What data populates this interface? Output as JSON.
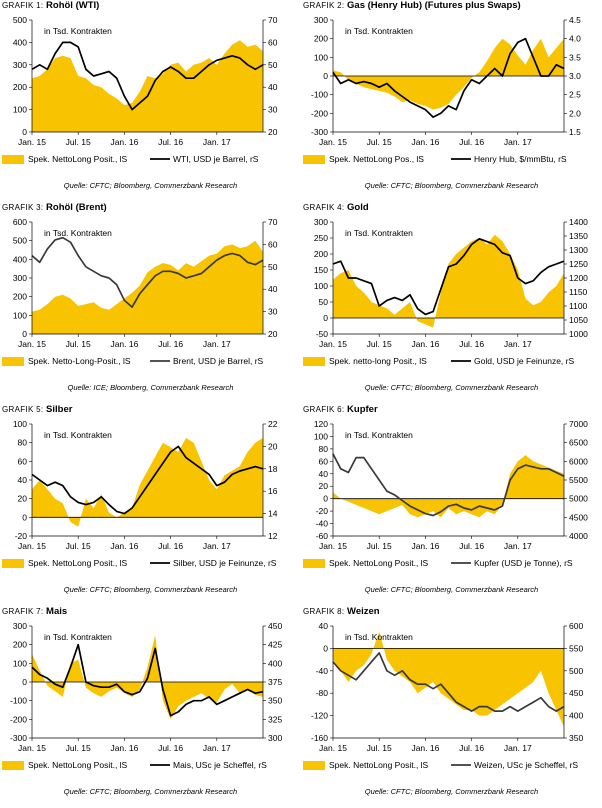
{
  "colors": {
    "area": "#F8C300",
    "line": "#000000",
    "line_grey": "#3a3a3a",
    "axis": "#000000",
    "zero": "#000000"
  },
  "common": {
    "xticks": [
      "Jan. 15",
      "Jul. 15",
      "Jan. 16",
      "Jul. 16",
      "Jan. 17"
    ],
    "months": 31,
    "unit_note": "in Tsd. Kontrakten"
  },
  "chart_data": [
    {
      "id": "g1",
      "gk": "GRAFIK 1:",
      "name": "Rohöl (WTI)",
      "source": "Quelle: CFTC; Bloomberg, Commerzbank Research",
      "type": "area+line",
      "legend_area": "Spek. NettoLong Posit., lS",
      "legend_line": "WTI, USD je Barrel, rS",
      "ylim_left": [
        0,
        500
      ],
      "yticks_left": [
        0,
        100,
        200,
        300,
        400,
        500
      ],
      "ylim_right": [
        20,
        70
      ],
      "yticks_right": [
        20,
        30,
        40,
        50,
        60,
        70
      ],
      "line_color": "line",
      "x": [
        0,
        1,
        2,
        3,
        4,
        5,
        6,
        7,
        8,
        9,
        10,
        11,
        12,
        13,
        14,
        15,
        16,
        17,
        18,
        19,
        20,
        21,
        22,
        23,
        24,
        25,
        26,
        27,
        28,
        29,
        30
      ],
      "area": [
        240,
        250,
        280,
        330,
        340,
        330,
        250,
        240,
        210,
        200,
        170,
        150,
        120,
        130,
        180,
        250,
        240,
        260,
        300,
        310,
        270,
        300,
        310,
        330,
        300,
        350,
        390,
        410,
        380,
        390,
        360
      ],
      "line": [
        48,
        50,
        48,
        55,
        60,
        60,
        58,
        48,
        45,
        46,
        47,
        44,
        36,
        30,
        33,
        36,
        43,
        47,
        49,
        47,
        44,
        44,
        47,
        50,
        52,
        53,
        54,
        53,
        50,
        48,
        50
      ]
    },
    {
      "id": "g2",
      "gk": "GRAFIK 2:",
      "name": "Gas (Henry Hub) (Futures plus Swaps)",
      "source": "Quelle: CFTC; Bloomberg, Commerzbank Research",
      "type": "area+line",
      "legend_area": "Spek. NettoLong Pos., lS",
      "legend_line": "Henry Hub, $/mmBtu, rS",
      "ylim_left": [
        -300,
        300
      ],
      "yticks_left": [
        -300,
        -200,
        -100,
        0,
        100,
        200,
        300
      ],
      "ylim_right": [
        1.5,
        4.5
      ],
      "yticks_right": [
        1.5,
        2.0,
        2.5,
        3.0,
        3.5,
        4.0,
        4.5
      ],
      "line_color": "line",
      "x": [
        0,
        1,
        2,
        3,
        4,
        5,
        6,
        7,
        8,
        9,
        10,
        11,
        12,
        13,
        14,
        15,
        16,
        17,
        18,
        19,
        20,
        21,
        22,
        23,
        24,
        25,
        26,
        27,
        28,
        29,
        30
      ],
      "area": [
        30,
        20,
        -20,
        -40,
        -60,
        -70,
        -80,
        -90,
        -110,
        -140,
        -130,
        -150,
        -160,
        -180,
        -170,
        -150,
        -100,
        -60,
        -10,
        20,
        80,
        150,
        200,
        170,
        110,
        60,
        140,
        200,
        100,
        150,
        200
      ],
      "line": [
        3.1,
        2.8,
        2.9,
        2.8,
        2.85,
        2.8,
        2.7,
        2.8,
        2.6,
        2.45,
        2.3,
        2.2,
        2.1,
        1.9,
        2.0,
        2.2,
        2.1,
        2.6,
        2.9,
        2.8,
        3.0,
        3.2,
        3.0,
        3.6,
        3.9,
        4.0,
        3.5,
        3.0,
        3.0,
        3.3,
        3.2
      ]
    },
    {
      "id": "g3",
      "gk": "GRAFIK 3:",
      "name": "Rohöl (Brent)",
      "source": "Quelle: ICE; Bloomberg, Commerzbank Research",
      "type": "area+line",
      "legend_area": "Spek. Netto-Long-Posit., lS",
      "legend_line": "Brent, USD je Barrel, rS",
      "ylim_left": [
        0,
        600
      ],
      "yticks_left": [
        0,
        100,
        200,
        300,
        400,
        500,
        600
      ],
      "ylim_right": [
        20,
        70
      ],
      "yticks_right": [
        20,
        30,
        40,
        50,
        60,
        70
      ],
      "line_color": "line_grey",
      "x": [
        0,
        1,
        2,
        3,
        4,
        5,
        6,
        7,
        8,
        9,
        10,
        11,
        12,
        13,
        14,
        15,
        16,
        17,
        18,
        19,
        20,
        21,
        22,
        23,
        24,
        25,
        26,
        27,
        28,
        29,
        30
      ],
      "area": [
        120,
        130,
        160,
        200,
        210,
        190,
        150,
        160,
        170,
        140,
        130,
        160,
        190,
        220,
        260,
        330,
        360,
        380,
        370,
        340,
        380,
        360,
        390,
        420,
        430,
        470,
        480,
        460,
        470,
        500,
        440
      ],
      "line": [
        55,
        52,
        58,
        62,
        63,
        61,
        55,
        50,
        48,
        46,
        45,
        42,
        35,
        32,
        38,
        42,
        46,
        48,
        48,
        47,
        45,
        46,
        47,
        50,
        53,
        55,
        56,
        55,
        52,
        51,
        53
      ]
    },
    {
      "id": "g4",
      "gk": "GRAFIK 4:",
      "name": "Gold",
      "source": "Quelle: CFTC; Bloomberg, Commerzbank Research",
      "type": "area+line",
      "legend_area": "Spek. netto-long Posit., lS",
      "legend_line": "Gold, USD je Feinunze, rS",
      "ylim_left": [
        -50,
        300
      ],
      "yticks_left": [
        -50,
        0,
        50,
        100,
        150,
        200,
        250,
        300
      ],
      "ylim_right": [
        1000,
        1400
      ],
      "yticks_right": [
        1000,
        1050,
        1100,
        1150,
        1200,
        1250,
        1300,
        1350,
        1400
      ],
      "line_color": "line",
      "x": [
        0,
        1,
        2,
        3,
        4,
        5,
        6,
        7,
        8,
        9,
        10,
        11,
        12,
        13,
        14,
        15,
        16,
        17,
        18,
        19,
        20,
        21,
        22,
        23,
        24,
        25,
        26,
        27,
        28,
        29,
        30
      ],
      "area": [
        120,
        140,
        150,
        100,
        80,
        50,
        40,
        30,
        10,
        30,
        50,
        -10,
        -20,
        -30,
        80,
        170,
        200,
        220,
        240,
        250,
        230,
        260,
        240,
        200,
        150,
        60,
        40,
        50,
        80,
        100,
        140
      ],
      "line": [
        1250,
        1260,
        1200,
        1200,
        1190,
        1180,
        1100,
        1120,
        1130,
        1120,
        1140,
        1090,
        1070,
        1080,
        1160,
        1240,
        1250,
        1280,
        1320,
        1340,
        1330,
        1320,
        1290,
        1280,
        1200,
        1180,
        1190,
        1220,
        1240,
        1250,
        1260
      ]
    },
    {
      "id": "g5",
      "gk": "GRAFIK 5:",
      "name": "Silber",
      "source": "Quelle: CFTC; Bloomberg, Commerzbank Research",
      "type": "area+line",
      "legend_area": "Spek. NettoLong Posit., lS",
      "legend_line": "Silber, USD je Feinunze, rS",
      "ylim_left": [
        -20,
        100
      ],
      "yticks_left": [
        -20,
        0,
        20,
        40,
        60,
        80,
        100
      ],
      "ylim_right": [
        12,
        22
      ],
      "yticks_right": [
        12,
        14,
        16,
        18,
        20,
        22
      ],
      "line_color": "line",
      "x": [
        0,
        1,
        2,
        3,
        4,
        5,
        6,
        7,
        8,
        9,
        10,
        11,
        12,
        13,
        14,
        15,
        16,
        17,
        18,
        19,
        20,
        21,
        22,
        23,
        24,
        25,
        26,
        27,
        28,
        29,
        30
      ],
      "area": [
        30,
        40,
        30,
        20,
        15,
        -5,
        -10,
        20,
        10,
        25,
        5,
        0,
        5,
        10,
        35,
        50,
        65,
        80,
        75,
        70,
        85,
        80,
        60,
        40,
        30,
        45,
        50,
        55,
        70,
        80,
        85
      ],
      "line": [
        17.5,
        17.0,
        16.5,
        16.8,
        16.5,
        15.5,
        15.0,
        14.8,
        15.0,
        15.5,
        14.8,
        14.2,
        14.0,
        14.5,
        15.5,
        16.5,
        17.5,
        18.5,
        19.5,
        20.0,
        19.0,
        18.5,
        18.0,
        17.5,
        16.5,
        16.8,
        17.5,
        17.8,
        18.0,
        18.2,
        18.0
      ]
    },
    {
      "id": "g6",
      "gk": "GRAFIK 6:",
      "name": "Kupfer",
      "source": "Quelle: CFTC; Bloomberg, Commerzbank Research",
      "type": "area+line",
      "legend_area": "Spek. NettoLong Posit., lS",
      "legend_line": "Kupfer (USD je Tonne), rS",
      "ylim_left": [
        -60,
        120
      ],
      "yticks_left": [
        -60,
        -40,
        -20,
        0,
        20,
        40,
        60,
        80,
        100,
        120
      ],
      "ylim_right": [
        4000,
        7000
      ],
      "yticks_right": [
        4000,
        4500,
        5000,
        5500,
        6000,
        6500,
        7000
      ],
      "line_color": "line_grey",
      "x": [
        0,
        1,
        2,
        3,
        4,
        5,
        6,
        7,
        8,
        9,
        10,
        11,
        12,
        13,
        14,
        15,
        16,
        17,
        18,
        19,
        20,
        21,
        22,
        23,
        24,
        25,
        26,
        27,
        28,
        29,
        30
      ],
      "area": [
        10,
        0,
        -5,
        -10,
        -15,
        -20,
        -25,
        -20,
        -15,
        -10,
        -25,
        -30,
        -25,
        -20,
        -30,
        -15,
        -25,
        -20,
        -25,
        -30,
        -20,
        -25,
        -10,
        40,
        60,
        70,
        60,
        55,
        50,
        45,
        40
      ],
      "line": [
        6200,
        5800,
        5700,
        6100,
        6100,
        5800,
        5500,
        5200,
        5100,
        4950,
        4800,
        4700,
        4600,
        4550,
        4650,
        4800,
        4850,
        4750,
        4700,
        4800,
        4750,
        4700,
        4800,
        5500,
        5800,
        5900,
        5850,
        5800,
        5800,
        5700,
        5600
      ]
    },
    {
      "id": "g7",
      "gk": "GRAFIK 7:",
      "name": "Mais",
      "source": "Quelle: CFTC; Bloomberg, Commerzbank Research",
      "type": "area+line",
      "legend_area": "Spek. NettoLong Posit., lS",
      "legend_line": "Mais, USc je Scheffel, rS",
      "ylim_left": [
        -300,
        300
      ],
      "yticks_left": [
        -300,
        -200,
        -100,
        0,
        100,
        200,
        300
      ],
      "ylim_right": [
        300,
        450
      ],
      "yticks_right": [
        300,
        325,
        350,
        375,
        400,
        425,
        450
      ],
      "line_color": "line",
      "x": [
        0,
        1,
        2,
        3,
        4,
        5,
        6,
        7,
        8,
        9,
        10,
        11,
        12,
        13,
        14,
        15,
        16,
        17,
        18,
        19,
        20,
        21,
        22,
        23,
        24,
        25,
        26,
        27,
        28,
        29,
        30
      ],
      "area": [
        150,
        60,
        -20,
        -50,
        -80,
        100,
        120,
        -30,
        -60,
        -80,
        -50,
        -30,
        -60,
        -80,
        -40,
        80,
        250,
        -100,
        -200,
        -130,
        -100,
        -80,
        -60,
        -90,
        -110,
        -40,
        -10,
        -60,
        -40,
        -70,
        -80
      ],
      "line": [
        395,
        385,
        380,
        372,
        368,
        395,
        425,
        375,
        370,
        368,
        368,
        372,
        362,
        358,
        362,
        380,
        420,
        365,
        330,
        335,
        345,
        350,
        350,
        355,
        345,
        350,
        355,
        360,
        365,
        360,
        362
      ]
    },
    {
      "id": "g8",
      "gk": "GRAFIK 8:",
      "name": "Weizen",
      "source": "Quelle: CFTC; Bloomberg, Commerzbank Research",
      "type": "area+line",
      "legend_area": "Spek. NettoLong Posit., lS",
      "legend_line": "Weizen, USc je Scheffel, rS",
      "ylim_left": [
        -160,
        40
      ],
      "yticks_left": [
        -160,
        -120,
        -80,
        -40,
        0,
        40
      ],
      "ylim_right": [
        350,
        600
      ],
      "yticks_right": [
        350,
        400,
        450,
        500,
        550,
        600
      ],
      "line_color": "line_grey",
      "x": [
        0,
        1,
        2,
        3,
        4,
        5,
        6,
        7,
        8,
        9,
        10,
        11,
        12,
        13,
        14,
        15,
        16,
        17,
        18,
        19,
        20,
        21,
        22,
        23,
        24,
        25,
        26,
        27,
        28,
        29,
        30
      ],
      "area": [
        -20,
        -40,
        -60,
        -40,
        -30,
        -10,
        30,
        -20,
        -40,
        -50,
        -60,
        -80,
        -70,
        -60,
        -80,
        -90,
        -100,
        -110,
        -110,
        -120,
        -120,
        -110,
        -100,
        -90,
        -80,
        -70,
        -60,
        -40,
        -80,
        -110,
        -140
      ],
      "line": [
        520,
        500,
        490,
        480,
        500,
        520,
        540,
        500,
        490,
        500,
        480,
        470,
        470,
        460,
        470,
        450,
        430,
        420,
        410,
        420,
        420,
        410,
        410,
        420,
        410,
        420,
        430,
        440,
        420,
        410,
        420
      ]
    }
  ]
}
